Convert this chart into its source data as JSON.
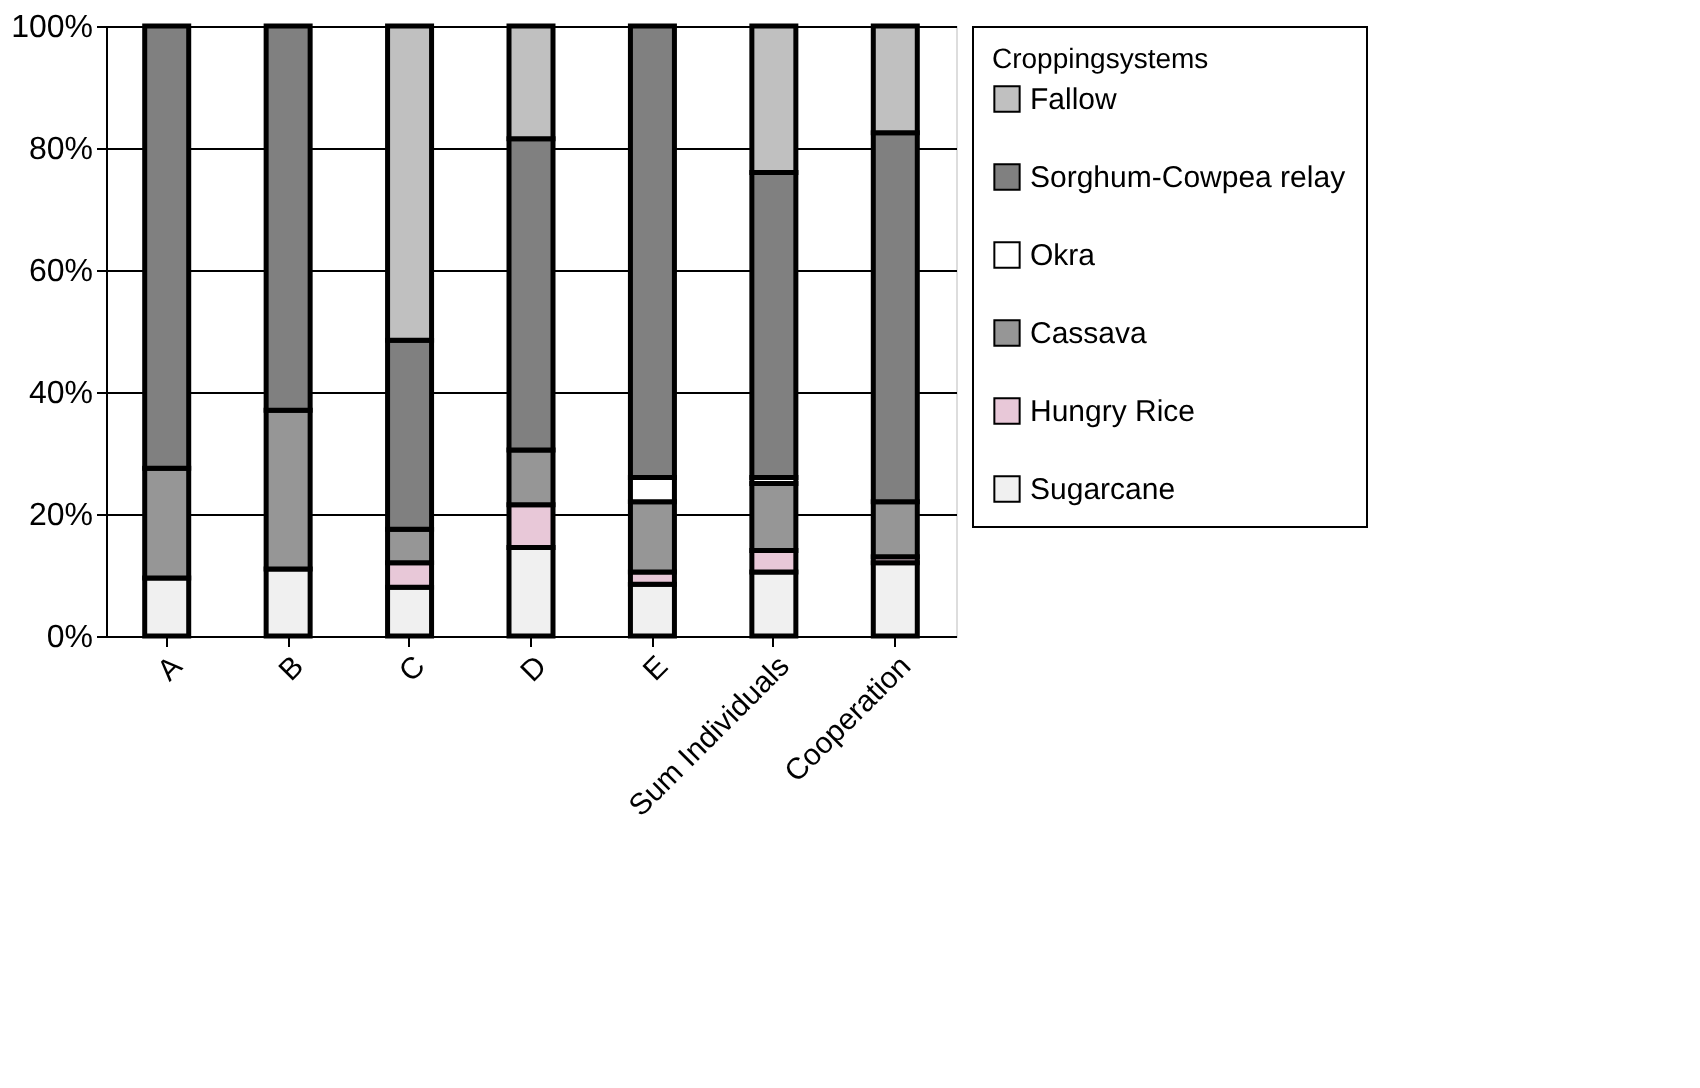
{
  "chart_data": {
    "type": "bar",
    "stacked": true,
    "legend_title": "Croppingsystems",
    "legend": "right",
    "grid": "y",
    "categories": [
      "A",
      "B",
      "C",
      "D",
      "E",
      "Sum Individuals",
      "Cooperation"
    ],
    "ylim": [
      0,
      100
    ],
    "yticks": [
      {
        "value": 0,
        "label": "0%"
      },
      {
        "value": 20,
        "label": "20%"
      },
      {
        "value": 40,
        "label": "40%"
      },
      {
        "value": 60,
        "label": "60%"
      },
      {
        "value": 80,
        "label": "80%"
      },
      {
        "value": 100,
        "label": "100%"
      }
    ],
    "series": [
      {
        "name": "Sugarcane",
        "color": "#f0f0f0",
        "values": [
          9.5,
          11,
          8,
          14.5,
          8.5,
          10.5,
          12
        ]
      },
      {
        "name": "Hungry Rice",
        "color": "#e8c8d8",
        "values": [
          null,
          null,
          4,
          7,
          2,
          3.5,
          1
        ]
      },
      {
        "name": "Cassava",
        "color": "#969696",
        "values": [
          18,
          26,
          5.5,
          9,
          11.5,
          11,
          9
        ]
      },
      {
        "name": "Okra",
        "color": "#ffffff",
        "values": [
          null,
          null,
          null,
          null,
          4,
          1,
          null
        ]
      },
      {
        "name": "Sorghum-Cowpea relay",
        "color": "#808080",
        "values": [
          72.5,
          63,
          31,
          51,
          74,
          50,
          60.5
        ]
      },
      {
        "name": "Fallow",
        "color": "#c0c0c0",
        "values": [
          null,
          null,
          51.5,
          18.5,
          null,
          24,
          17.5
        ]
      }
    ]
  }
}
